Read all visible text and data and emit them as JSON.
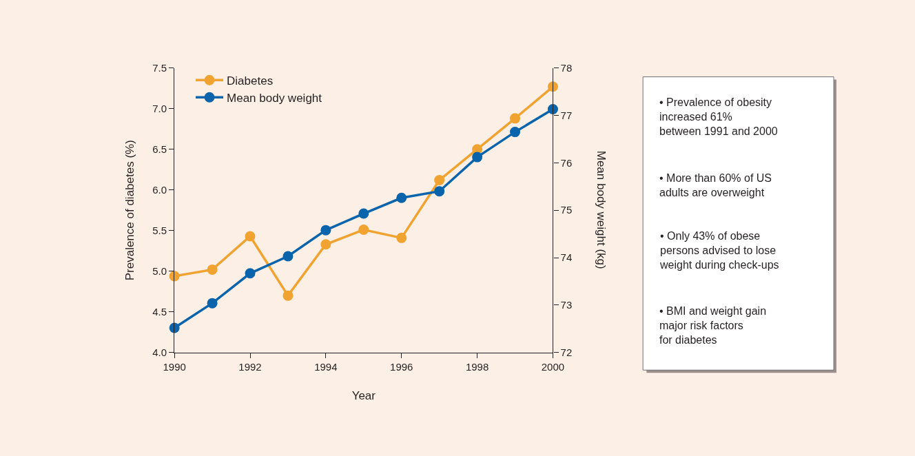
{
  "chart_data": {
    "type": "line",
    "xlabel": "Year",
    "ylabel": "Prevalence of diabetes (%)",
    "y2label": "Mean body weight (kg)",
    "x": [
      1990,
      1991,
      1992,
      1993,
      1994,
      1995,
      1996,
      1997,
      1998,
      1999,
      2000
    ],
    "series": [
      {
        "name": "Diabetes",
        "color": "#f0a330",
        "values": [
          4.94,
          5.02,
          5.43,
          4.7,
          5.33,
          5.51,
          5.41,
          6.12,
          6.5,
          6.88,
          7.27
        ]
      },
      {
        "name": "Mean body weight",
        "color": "#0a64ab",
        "axis": "y2",
        "values": [
          72.52,
          73.04,
          73.67,
          74.03,
          74.58,
          74.93,
          75.26,
          75.4,
          76.12,
          76.65,
          77.13
        ]
      }
    ],
    "xlim": [
      1990,
      2000
    ],
    "xticks": [
      1990,
      1992,
      1994,
      1996,
      1998,
      2000
    ],
    "ylim": [
      4.0,
      7.5
    ],
    "yticks": [
      {
        "value": 4.0,
        "label": "4.0"
      },
      {
        "value": 4.5,
        "label": "4.5"
      },
      {
        "value": 5.0,
        "label": "5.0"
      },
      {
        "value": 5.5,
        "label": "5.5"
      },
      {
        "value": 6.0,
        "label": "6.0"
      },
      {
        "value": 6.5,
        "label": "6.5"
      },
      {
        "value": 7.0,
        "label": "7.0"
      },
      {
        "value": 7.5,
        "label": "7.5"
      }
    ],
    "y2lim": [
      72,
      78
    ],
    "y2ticks": [
      72,
      73,
      74,
      75,
      76,
      77,
      78
    ],
    "marker": "circle",
    "line_style": "solid",
    "grid": false,
    "legend": "top left",
    "annotations": [
      "• Prevalence of obesity\nincreased 61%\nbetween 1991 and 2000",
      "• More than 60% of US\nadults are overweight",
      "• Only 43% of obese\npersons advised to lose\nweight during check-ups",
      "• BMI and weight gain\nmajor risk factors\nfor diabetes"
    ]
  }
}
